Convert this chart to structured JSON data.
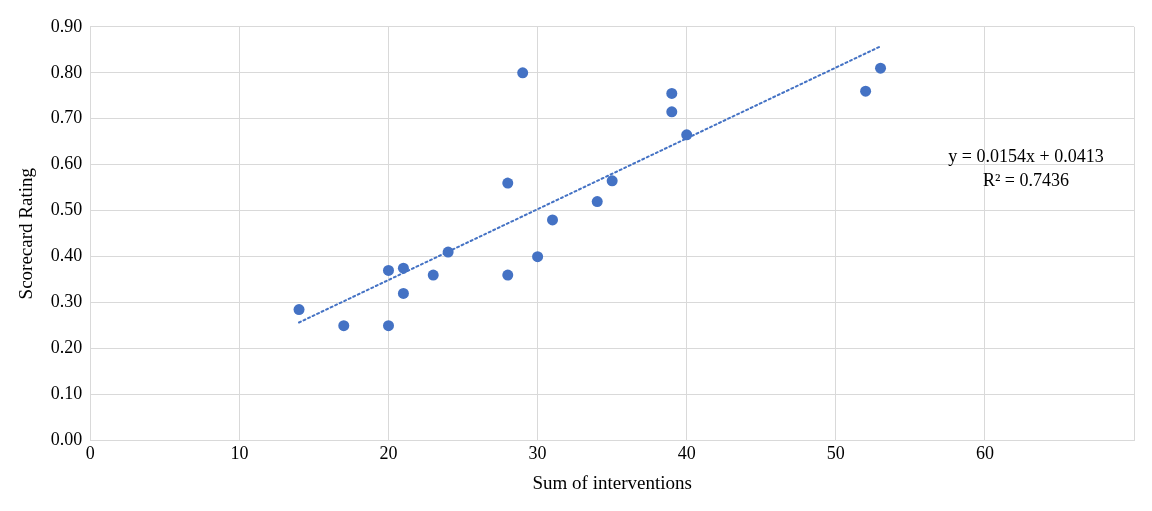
{
  "chart_data": {
    "type": "scatter",
    "xlabel": "Sum of interventions",
    "ylabel": "Scorecard Rating",
    "x": [
      14,
      17,
      20,
      20,
      21,
      21,
      23,
      24,
      28,
      28,
      29,
      30,
      31,
      34,
      35,
      39,
      39,
      40,
      52,
      53
    ],
    "series": [
      {
        "color": "#4472c4",
        "values": [
          0.285,
          0.25,
          0.25,
          0.37,
          0.375,
          0.32,
          0.36,
          0.41,
          0.56,
          0.36,
          0.8,
          0.4,
          0.48,
          0.52,
          0.565,
          0.755,
          0.715,
          0.665,
          0.76,
          0.81
        ]
      },
      {
        "type": "line",
        "color": "#4472c4",
        "line_style": "dotted",
        "marker": "none",
        "x": [
          14,
          53
        ],
        "values": [
          0.2569,
          0.8575
        ]
      }
    ],
    "marker": "circle",
    "xlim": [
      0,
      70
    ],
    "xticks": [
      0,
      10,
      20,
      30,
      40,
      50,
      60,
      {
        "value": 70,
        "label": null
      }
    ],
    "ylim": [
      0,
      0.9
    ],
    "yticks": [
      {
        "value": 0,
        "label": "0.00"
      },
      {
        "value": 0.1,
        "label": "0.10"
      },
      {
        "value": 0.2,
        "label": "0.20"
      },
      {
        "value": 0.3,
        "label": "0.30"
      },
      {
        "value": 0.4,
        "label": "0.40"
      },
      {
        "value": 0.5,
        "label": "0.50"
      },
      {
        "value": 0.6,
        "label": "0.60"
      },
      {
        "value": 0.7,
        "label": "0.70"
      },
      {
        "value": 0.8,
        "label": "0.80"
      },
      {
        "value": 0.9,
        "label": "0.90"
      }
    ],
    "grid": true,
    "legend": false,
    "annotations": [
      "y = 0.0154x + 0.0413",
      "R² = 0.7436"
    ]
  }
}
